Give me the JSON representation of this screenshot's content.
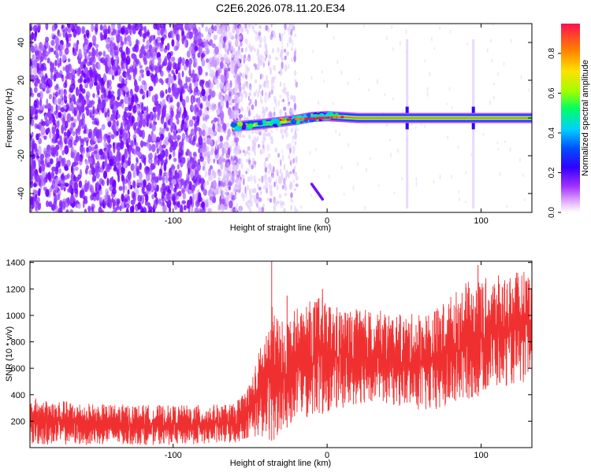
{
  "figure_title": "C2E6.2026.078.11.20.E34",
  "chart_data": [
    {
      "type": "heatmap",
      "title": "C2E6.2026.078.11.20.E34",
      "xlabel": "Height of straight line (km)",
      "ylabel": "Frequency (Hz)",
      "xlim": [
        -193,
        133
      ],
      "ylim": [
        -50,
        50
      ],
      "xticks": [
        -100,
        0,
        100
      ],
      "xtick_labels": [
        "-100",
        "0",
        "100"
      ],
      "yticks": [
        -40,
        -20,
        0,
        20,
        40
      ],
      "ytick_labels": [
        "-40",
        "-20",
        "0",
        "20",
        "40"
      ],
      "colorbar": {
        "label": "Normalized spectral amplitude",
        "range": [
          0,
          0.95
        ],
        "ticks": [
          0,
          0.2,
          0.4,
          0.6,
          0.8
        ],
        "tick_labels": [
          "0.0",
          "0.2",
          "0.4",
          "0.6",
          "0.8"
        ],
        "colormap": [
          "#ffffff",
          "#e8b8ff",
          "#a030ff",
          "#3000ff",
          "#0050ff",
          "#00d0ff",
          "#00ff60",
          "#a0ff00",
          "#ffe000",
          "#ff8000",
          "#ff1050"
        ]
      },
      "features": {
        "noise_region": {
          "x_range": [
            -193,
            -60
          ],
          "y_range": [
            -50,
            50
          ],
          "level": 0.1
        },
        "transition_region": {
          "x_range": [
            -60,
            -35
          ],
          "level": 0.05
        },
        "signal_line_path": [
          {
            "x": -62,
            "y": -4.5
          },
          {
            "x": -50,
            "y": -3.8
          },
          {
            "x": -40,
            "y": -3.0
          },
          {
            "x": -30,
            "y": -2.0
          },
          {
            "x": -20,
            "y": -1.0
          },
          {
            "x": -10,
            "y": 0.5
          },
          {
            "x": 0,
            "y": 1.0
          },
          {
            "x": 10,
            "y": 0.5
          },
          {
            "x": 20,
            "y": 0.0
          },
          {
            "x": 133,
            "y": 0.0
          }
        ],
        "line_peak_level": 0.9,
        "vertical_artifacts_x": [
          52,
          95
        ],
        "streak": {
          "from": {
            "x": -10,
            "y": -35
          },
          "to": {
            "x": -3,
            "y": -43
          }
        }
      }
    },
    {
      "type": "line",
      "xlabel": "Height of straight line (km)",
      "ylabel": "SNR (10 * v/v)",
      "xlim": [
        -193,
        133
      ],
      "ylim": [
        0,
        1410
      ],
      "xticks": [
        -100,
        0,
        100
      ],
      "xtick_labels": [
        "-100",
        "0",
        "100"
      ],
      "yticks": [
        200,
        400,
        600,
        800,
        1000,
        1200,
        1400
      ],
      "ytick_labels": [
        "200",
        "400",
        "600",
        "800",
        "1000",
        "1200",
        "1400"
      ],
      "color": "#f03030",
      "envelope": [
        {
          "x": -193,
          "low": 20,
          "high": 380
        },
        {
          "x": -150,
          "low": 20,
          "high": 330
        },
        {
          "x": -100,
          "low": 20,
          "high": 320
        },
        {
          "x": -60,
          "low": 30,
          "high": 330
        },
        {
          "x": -50,
          "low": 80,
          "high": 500
        },
        {
          "x": -40,
          "low": 60,
          "high": 900
        },
        {
          "x": -35,
          "low": 50,
          "high": 1100
        },
        {
          "x": -30,
          "low": 120,
          "high": 950
        },
        {
          "x": -20,
          "low": 200,
          "high": 1050
        },
        {
          "x": -5,
          "low": 250,
          "high": 1150
        },
        {
          "x": 10,
          "low": 300,
          "high": 1050
        },
        {
          "x": 30,
          "low": 350,
          "high": 1050
        },
        {
          "x": 50,
          "low": 300,
          "high": 1000
        },
        {
          "x": 70,
          "low": 250,
          "high": 1050
        },
        {
          "x": 90,
          "low": 350,
          "high": 1250
        },
        {
          "x": 110,
          "low": 450,
          "high": 1300
        },
        {
          "x": 133,
          "low": 500,
          "high": 1350
        }
      ],
      "spikes": [
        {
          "x": -36,
          "value": 1410
        },
        {
          "x": -26,
          "value": 1150
        },
        {
          "x": -3,
          "value": 1200
        },
        {
          "x": 98,
          "value": 1380
        }
      ]
    }
  ]
}
